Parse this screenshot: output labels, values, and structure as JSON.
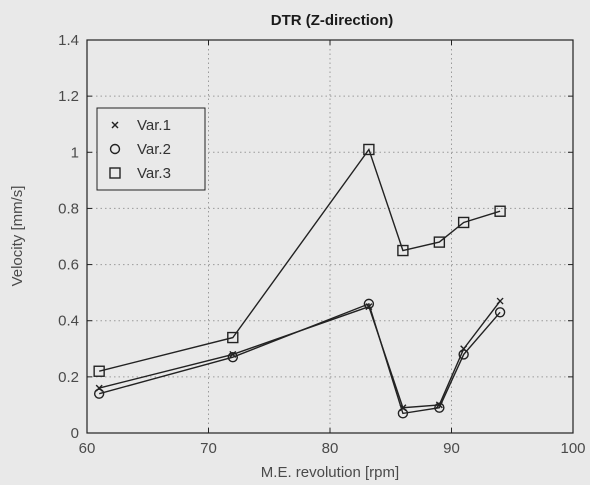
{
  "chart_data": {
    "type": "line",
    "title": "DTR (Z-direction)",
    "xlabel": "M.E. revolution [rpm]",
    "ylabel": "Velocity [mm/s]",
    "xlim": [
      60,
      100
    ],
    "ylim": [
      0,
      1.4
    ],
    "xticks": [
      "60",
      "70",
      "80",
      "90",
      "100"
    ],
    "yticks": [
      "0",
      "0.2",
      "0.4",
      "0.6",
      "0.8",
      "1",
      "1.2",
      "1.4"
    ],
    "grid": true,
    "legend_position": "upper-left",
    "series": [
      {
        "name": "Var.1",
        "marker": "x",
        "x": [
          61,
          72,
          83.2,
          86,
          89,
          91,
          94
        ],
        "y": [
          0.16,
          0.28,
          0.45,
          0.09,
          0.1,
          0.3,
          0.47
        ]
      },
      {
        "name": "Var.2",
        "marker": "o",
        "x": [
          61,
          72,
          83.2,
          86,
          89,
          91,
          94
        ],
        "y": [
          0.14,
          0.27,
          0.46,
          0.07,
          0.09,
          0.28,
          0.43
        ]
      },
      {
        "name": "Var.3",
        "marker": "square",
        "x": [
          61,
          72,
          83.2,
          86,
          89,
          91,
          94
        ],
        "y": [
          0.22,
          0.34,
          1.01,
          0.65,
          0.68,
          0.75,
          0.79
        ]
      }
    ],
    "colors": {
      "line": "#222222",
      "background": "#e9e9e9",
      "grid": "#9a9a9a"
    }
  }
}
